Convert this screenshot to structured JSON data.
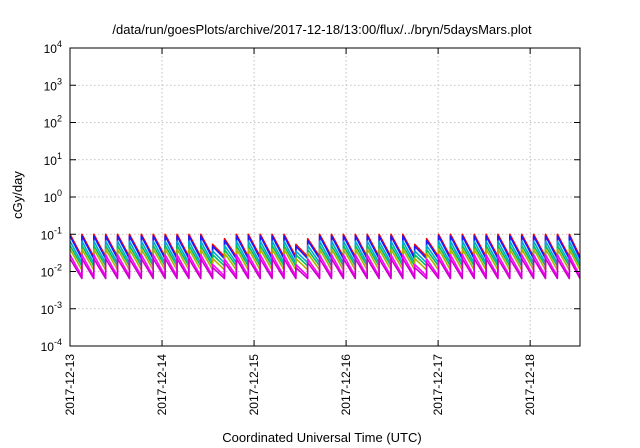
{
  "chart_data": {
    "type": "line",
    "title": "/data/run/goesPlots/archive/2017-12-18/13:00/flux/../bryn/5daysMars.plot",
    "xlabel": "Coordinated Universal Time (UTC)",
    "ylabel": "cGy/day",
    "yscale": "log",
    "ylim": [
      0.0001,
      10000
    ],
    "xlim": [
      "2017-12-13T00:00",
      "2017-12-18T13:00"
    ],
    "x_ticks": [
      "2017-12-13",
      "2017-12-14",
      "2017-12-15",
      "2017-12-16",
      "2017-12-17",
      "2017-12-18"
    ],
    "y_ticks": [
      {
        "value": 0.0001,
        "base": "10",
        "exp": "-4"
      },
      {
        "value": 0.001,
        "base": "10",
        "exp": "-3"
      },
      {
        "value": 0.01,
        "base": "10",
        "exp": "-2"
      },
      {
        "value": 0.1,
        "base": "10",
        "exp": "-1"
      },
      {
        "value": 1,
        "base": "10",
        "exp": "0"
      },
      {
        "value": 10,
        "base": "10",
        "exp": "1"
      },
      {
        "value": 100,
        "base": "10",
        "exp": "2"
      },
      {
        "value": 1000,
        "base": "10",
        "exp": "3"
      },
      {
        "value": 10000,
        "base": "10",
        "exp": "4"
      }
    ],
    "grid": true,
    "legend": "none",
    "series": [
      {
        "color": "#ff0000",
        "peak": 0.1,
        "trough": 0.025
      },
      {
        "color": "#1a1aff",
        "peak": 0.09,
        "trough": 0.022
      },
      {
        "color": "#00a8d8",
        "peak": 0.065,
        "trough": 0.017
      },
      {
        "color": "#00c060",
        "peak": 0.05,
        "trough": 0.014
      },
      {
        "color": "#b0b000",
        "peak": 0.04,
        "trough": 0.011
      },
      {
        "color": "#ff00ff",
        "peak": 0.028,
        "trough": 0.0075
      },
      {
        "color": "#cc00cc",
        "peak": 0.022,
        "trough": 0.0065
      }
    ],
    "pulse_period_hours": 3.1
  }
}
